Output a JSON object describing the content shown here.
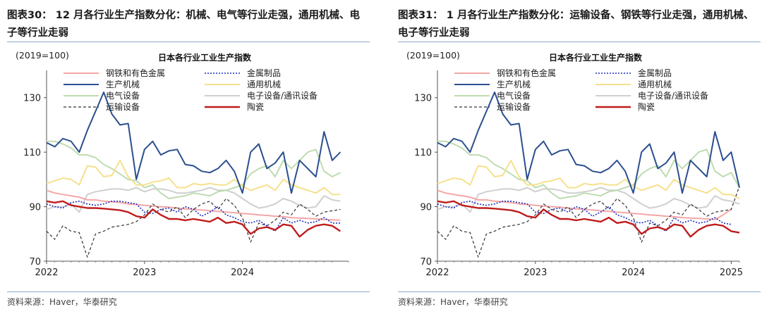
{
  "panels": [
    {
      "figure_title": "图表30： 12 月各行业生产指数分化：机械、电气等行业走强，通用机械、电子等行业走弱",
      "source": "资料来源：Haver，华泰研究",
      "chart_data": {
        "type": "line",
        "title": "日本各行业工业生产指数",
        "unit_label": "(2019=100)",
        "ylim": [
          70,
          140
        ],
        "yticks": [
          70,
          90,
          110,
          130
        ],
        "xticks": [
          {
            "label": "2022",
            "x": 0
          },
          {
            "label": "2023",
            "x": 12
          },
          {
            "label": "2024",
            "x": 24
          }
        ],
        "xlim": [
          0,
          37
        ],
        "legend_placement": "top",
        "series": [
          {
            "name": "钢铁和有色金属",
            "color": "#f4a6a6",
            "dash": "",
            "width": 2,
            "values": [
              96,
              95,
              94.5,
              94,
              93.5,
              92.5,
              92.5,
              92,
              91.8,
              91.5,
              91,
              90.8,
              90.5,
              90.2,
              90,
              89.8,
              89.5,
              89.2,
              89,
              88.8,
              88.5,
              88.3,
              88,
              87.8,
              87.5,
              87.3,
              87,
              86.8,
              86.5,
              86.3,
              86,
              85.8,
              85.7,
              85.5,
              85.3,
              85.2,
              85
            ]
          },
          {
            "name": "金属制品",
            "color": "#1f2fbf",
            "dash": "2,2",
            "width": 1.6,
            "values": [
              91,
              90,
              89.5,
              91.5,
              92,
              91,
              90.5,
              91,
              92,
              92,
              91.5,
              91,
              88,
              87.5,
              89,
              89.5,
              88,
              90,
              89,
              86.5,
              88,
              90,
              87,
              86,
              84.5,
              84,
              85,
              83,
              81,
              86,
              84,
              85,
              84,
              84.5,
              86,
              84,
              84
            ]
          },
          {
            "name": "生产机械",
            "color": "#2b4f8f",
            "dash": "",
            "width": 2,
            "values": [
              113.5,
              112,
              115,
              114,
              110,
              118,
              125,
              132,
              124,
              120,
              120.5,
              100,
              111,
              114,
              109,
              110.5,
              111,
              105.5,
              105,
              103,
              102.5,
              104,
              107,
              103,
              95,
              110,
              113,
              104,
              106,
              110,
              95,
              107,
              104,
              101,
              117.5,
              107,
              110
            ]
          },
          {
            "name": "通用机械",
            "color": "#f6e08c",
            "dash": "",
            "width": 2,
            "values": [
              98.5,
              99.5,
              100.5,
              100,
              98,
              105,
              104.5,
              101,
              101.5,
              107,
              101,
              98,
              98,
              99,
              99.5,
              100.5,
              97,
              97,
              98.5,
              98,
              98.5,
              98,
              98,
              100,
              97.5,
              96,
              97,
              98,
              96,
              100,
              98,
              97,
              96,
              95,
              97,
              94.5,
              94.5
            ]
          },
          {
            "name": "电气设备",
            "color": "#bedcb0",
            "dash": "",
            "width": 2,
            "values": [
              114,
              114,
              113,
              111.5,
              109,
              109,
              108,
              105.5,
              104,
              102,
              100,
              99.5,
              97,
              98,
              95,
              93,
              93.5,
              94,
              95,
              94.5,
              94,
              95.5,
              96,
              97,
              98,
              102,
              104,
              105,
              101,
              107,
              104,
              107,
              110,
              111,
              103,
              101,
              102.5
            ]
          },
          {
            "name": "电子设备/通讯设备",
            "color": "#cfcfcf",
            "dash": "",
            "width": 2,
            "values": [
              89,
              90,
              90,
              91,
              88,
              94.5,
              95.5,
              96,
              96.5,
              96.5,
              96,
              97,
              95.5,
              96.5,
              96.5,
              96,
              95,
              95,
              95.5,
              96,
              97,
              96,
              96,
              95,
              93,
              91,
              89.5,
              90,
              91,
              93,
              92,
              90.5,
              89.5,
              90,
              94,
              92.5,
              92
            ]
          },
          {
            "name": "运输设备",
            "color": "#333333",
            "dash": "4,3",
            "width": 1.2,
            "values": [
              81,
              78,
              83,
              81,
              80.5,
              71.5,
              80,
              81,
              82.5,
              83,
              83.5,
              84.5,
              87,
              91,
              89,
              88,
              90,
              86,
              89,
              91,
              92,
              89,
              93,
              90.5,
              86,
              77,
              84,
              83,
              85,
              88,
              87,
              91,
              89,
              86.5,
              88,
              88.5,
              89
            ]
          },
          {
            "name": "陶瓷",
            "color": "#c01c1c",
            "dash": "",
            "width": 2.4,
            "values": [
              92,
              91.5,
              92,
              90.5,
              90,
              89.5,
              89.5,
              89.3,
              89,
              88.7,
              88,
              86.5,
              86,
              89,
              87,
              85.5,
              85.5,
              85,
              85.5,
              85,
              84.5,
              86,
              84,
              84.5,
              83.5,
              80,
              82,
              82.5,
              81.5,
              83.5,
              83,
              79,
              81.5,
              83,
              83.5,
              83,
              81
            ]
          }
        ]
      }
    },
    {
      "figure_title": "图表31： 1 月各行业生产指数分化：运输设备、钢铁等行业走强，通用机械、电子等行业走弱",
      "source": "资料来源：Haver，华泰研究",
      "chart_data": {
        "type": "line",
        "title": "日本各行业工业生产指数",
        "unit_label": "(2019=100)",
        "ylim": [
          70,
          140
        ],
        "yticks": [
          70,
          90,
          110,
          130
        ],
        "xticks": [
          {
            "label": "2022",
            "x": 0
          },
          {
            "label": "2023",
            "x": 12
          },
          {
            "label": "2024",
            "x": 24
          },
          {
            "label": "2025",
            "x": 36
          }
        ],
        "xlim": [
          0,
          37
        ],
        "legend_placement": "top",
        "series": [
          {
            "name": "钢铁和有色金属",
            "color": "#f4a6a6",
            "dash": "",
            "width": 2,
            "values": [
              96,
              95,
              94.5,
              94,
              93.5,
              92.5,
              92.5,
              92,
              91.8,
              91.5,
              91,
              90.8,
              90.5,
              90.2,
              90,
              89.8,
              89.5,
              89.2,
              89,
              88.8,
              88.5,
              88.3,
              88,
              87.8,
              87.5,
              87.3,
              87,
              86.8,
              86.5,
              86.3,
              86,
              85.8,
              85.7,
              85.5,
              85.3,
              87,
              89
            ]
          },
          {
            "name": "金属制品",
            "color": "#1f2fbf",
            "dash": "2,2",
            "width": 1.6,
            "values": [
              91,
              90,
              89.5,
              91.5,
              92,
              91,
              90.5,
              91,
              92,
              92,
              91.5,
              91,
              88,
              87.5,
              89,
              89.5,
              88,
              90,
              89,
              86.5,
              88,
              90,
              87,
              86,
              84.5,
              84,
              85,
              83,
              81,
              86,
              84,
              85,
              84,
              84.5,
              86,
              84,
              83.5
            ]
          },
          {
            "name": "生产机械",
            "color": "#2b4f8f",
            "dash": "",
            "width": 2,
            "values": [
              113.5,
              112,
              115,
              114,
              110,
              118,
              125,
              132,
              124,
              120,
              120.5,
              100,
              111,
              114,
              109,
              110.5,
              111,
              105.5,
              105,
              103,
              102.5,
              104,
              107,
              103,
              95,
              110,
              113,
              104,
              106,
              110,
              95,
              107,
              104,
              101,
              117.5,
              107,
              110,
              97
            ]
          },
          {
            "name": "通用机械",
            "color": "#f6e08c",
            "dash": "",
            "width": 2,
            "values": [
              98.5,
              99.5,
              100.5,
              100,
              98,
              105,
              104.5,
              101,
              101.5,
              107,
              101,
              98,
              98,
              99,
              99.5,
              100.5,
              97,
              97,
              98.5,
              98,
              98.5,
              98,
              98,
              100,
              97.5,
              96,
              97,
              98,
              96,
              100,
              98,
              97,
              96,
              95,
              97,
              94.5,
              94.5,
              93
            ]
          },
          {
            "name": "电气设备",
            "color": "#bedcb0",
            "dash": "",
            "width": 2,
            "values": [
              114,
              114,
              113,
              111.5,
              109,
              109,
              108,
              105.5,
              104,
              102,
              100,
              99.5,
              97,
              98,
              95,
              93,
              93.5,
              94,
              95,
              94.5,
              94,
              95.5,
              96,
              97,
              98,
              102,
              104,
              105,
              101,
              107,
              104,
              107,
              110,
              111,
              103,
              101,
              102.5,
              97
            ]
          },
          {
            "name": "电子设备/通讯设备",
            "color": "#cfcfcf",
            "dash": "",
            "width": 2,
            "values": [
              89,
              90,
              90,
              91,
              88,
              94.5,
              95.5,
              96,
              96.5,
              96.5,
              96,
              97,
              95.5,
              96.5,
              96.5,
              96,
              95,
              95,
              95.5,
              96,
              97,
              96,
              96,
              95,
              93,
              91,
              89.5,
              90,
              91,
              93,
              92,
              90.5,
              89.5,
              90,
              94,
              92.5,
              92,
              91
            ]
          },
          {
            "name": "运输设备",
            "color": "#333333",
            "dash": "4,3",
            "width": 1.2,
            "values": [
              81,
              78,
              83,
              81,
              80.5,
              71.5,
              80,
              81,
              82.5,
              83,
              83.5,
              84.5,
              87,
              91,
              89,
              88,
              90,
              86,
              89,
              91,
              92,
              89,
              93,
              90.5,
              86,
              77,
              84,
              83,
              85,
              88,
              87,
              91,
              89,
              86.5,
              88,
              88.5,
              89,
              97.5
            ]
          },
          {
            "name": "陶瓷",
            "color": "#c01c1c",
            "dash": "",
            "width": 2.4,
            "values": [
              92,
              91.5,
              92,
              90.5,
              90,
              89.5,
              89.5,
              89.3,
              89,
              88.7,
              88,
              86.5,
              86,
              89,
              87,
              85.5,
              85.5,
              85,
              85.5,
              85,
              84.5,
              86,
              84,
              84.5,
              83.5,
              80,
              82,
              82.5,
              81.5,
              83.5,
              83,
              79,
              81.5,
              83,
              83.5,
              83,
              81,
              80.5
            ]
          }
        ]
      }
    }
  ]
}
